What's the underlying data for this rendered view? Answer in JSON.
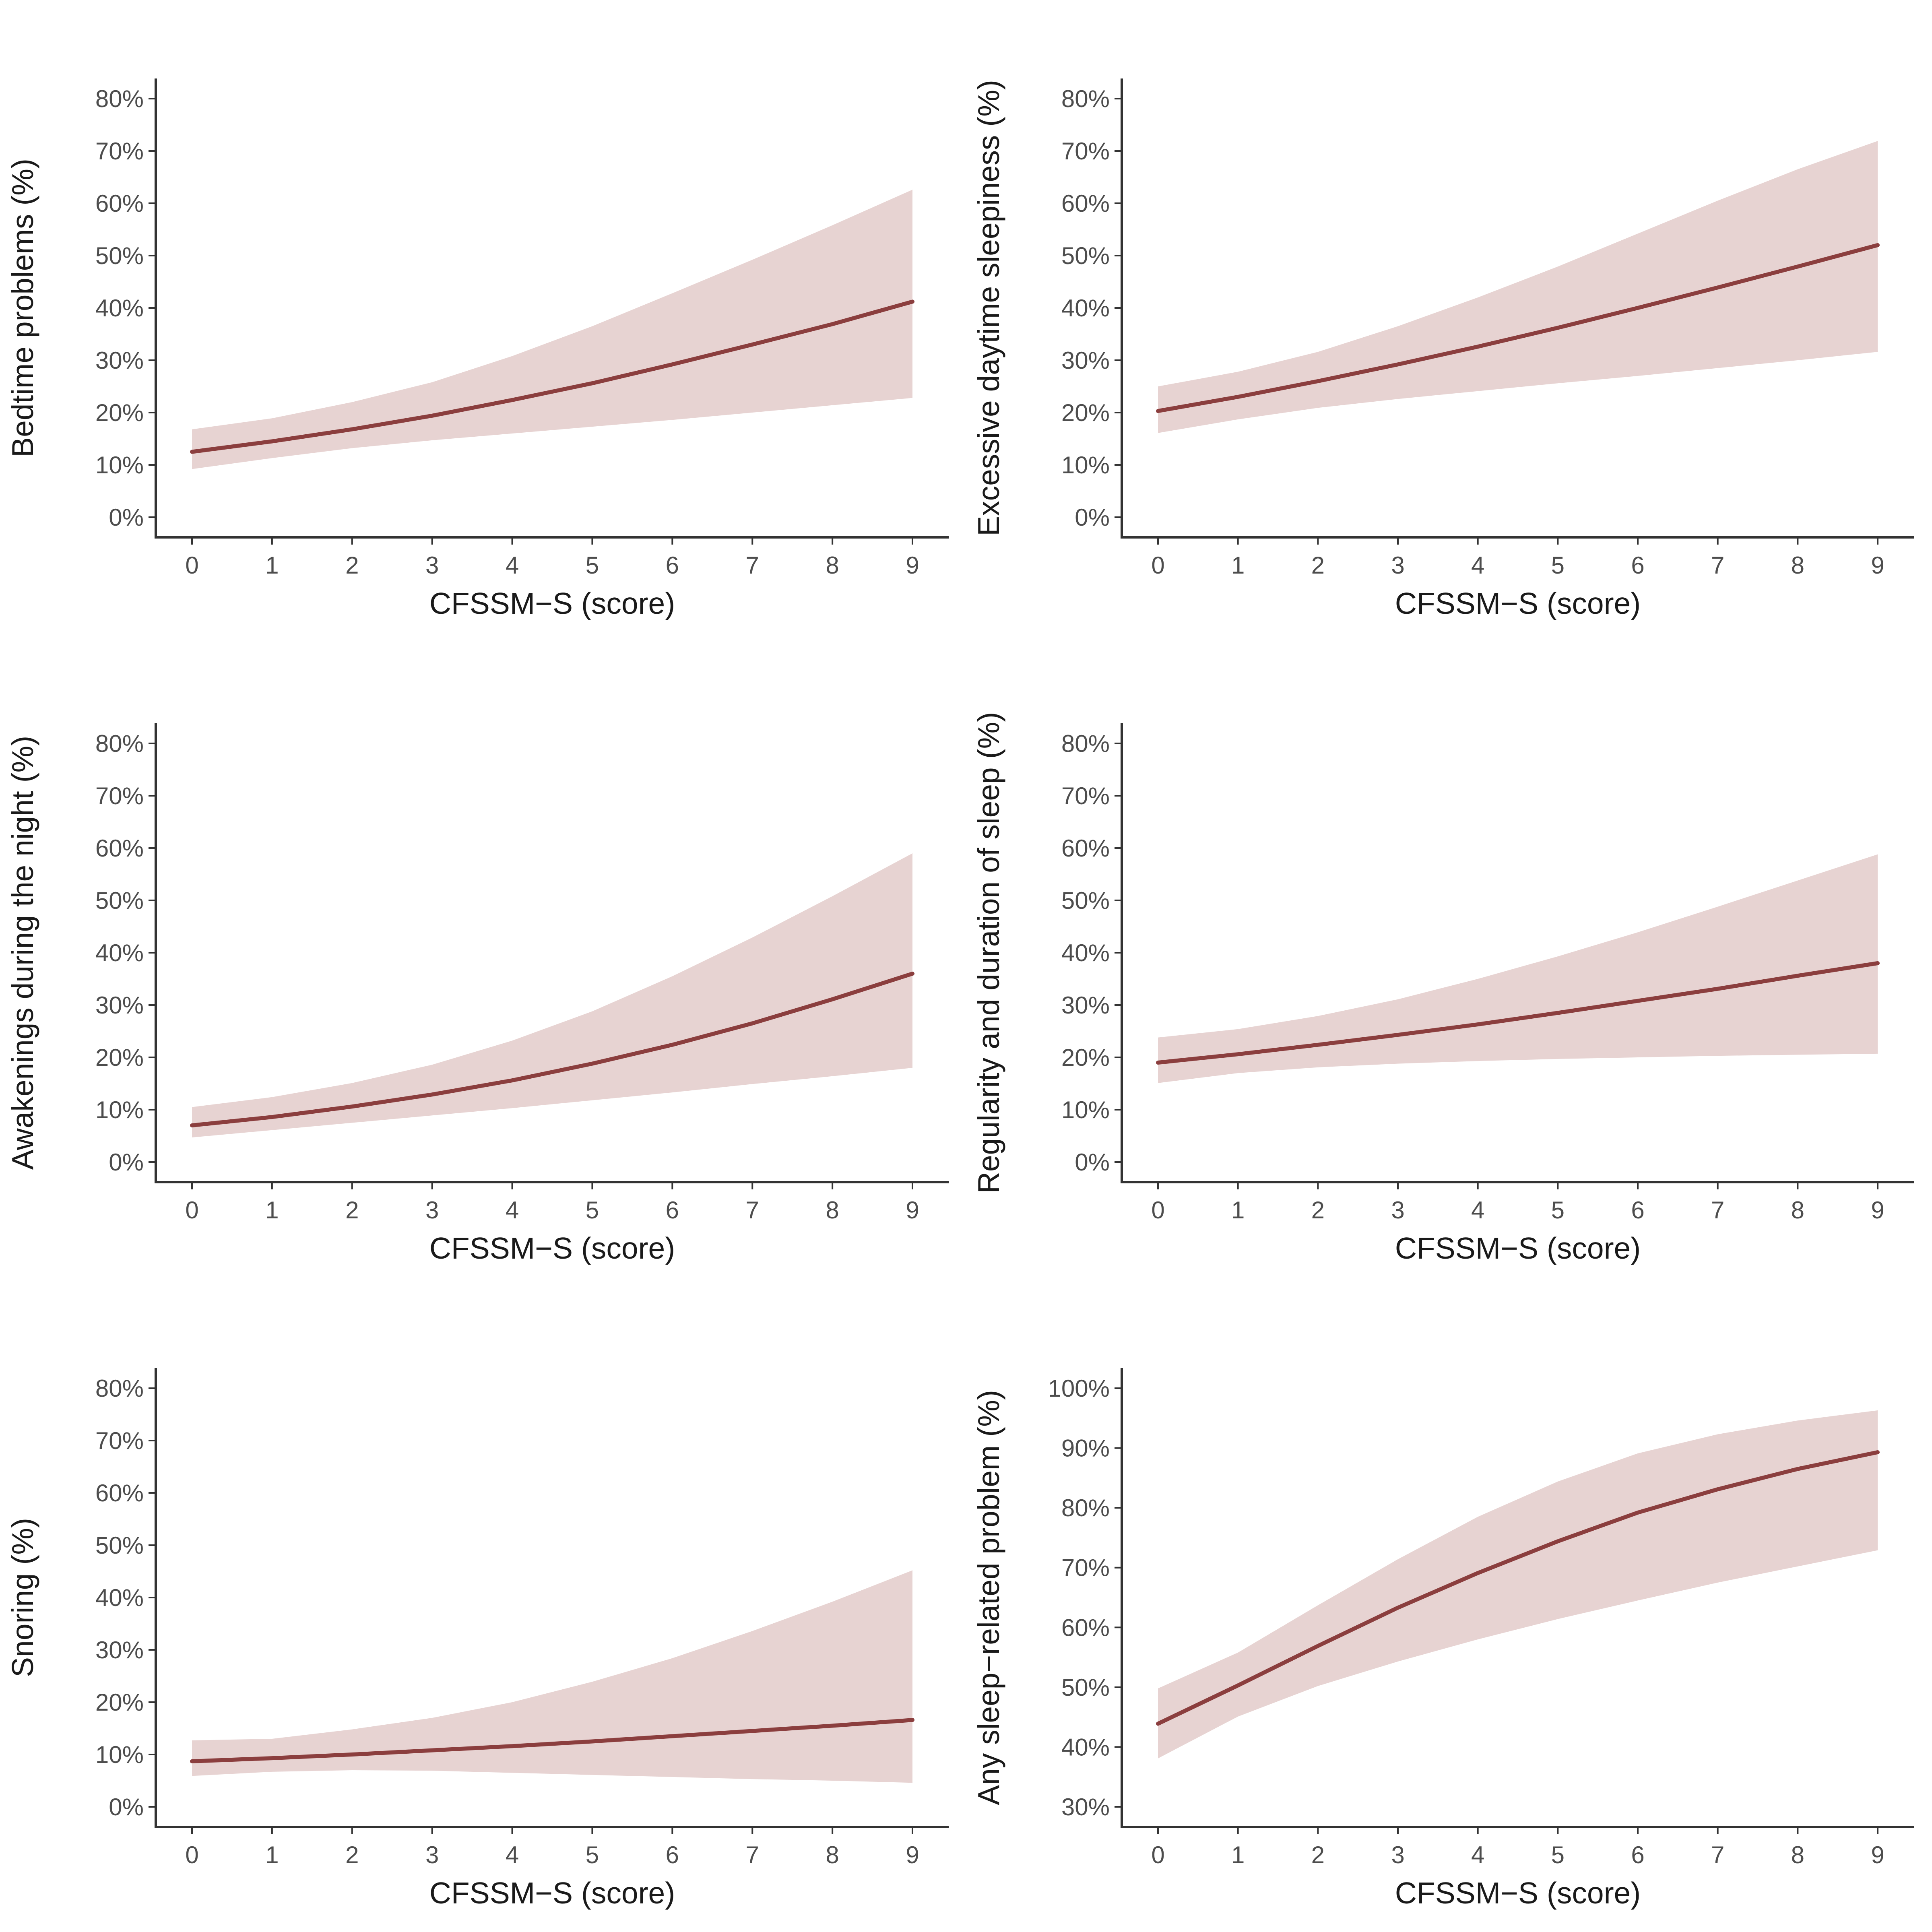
{
  "colors": {
    "line": "#8b3e3e",
    "band": "#e7d3d2",
    "axis": "#333333",
    "tick_text": "#4d4d4d"
  },
  "chart_data": [
    {
      "type": "line",
      "ylabel": "Bedtime problems (%)",
      "xlabel": "CFSSM−S (score)",
      "x": [
        0,
        1,
        2,
        3,
        4,
        5,
        6,
        7,
        8,
        9
      ],
      "xticks": [
        "0",
        "1",
        "2",
        "3",
        "4",
        "5",
        "6",
        "7",
        "8",
        "9"
      ],
      "ylim": [
        0,
        80
      ],
      "yticks": [
        0,
        10,
        20,
        30,
        40,
        50,
        60,
        70,
        80
      ],
      "ytick_labels": [
        "0%",
        "10%",
        "20%",
        "30%",
        "40%",
        "50%",
        "60%",
        "70%",
        "80%"
      ],
      "series": [
        {
          "name": "estimate",
          "values": [
            12.5,
            14.5,
            16.8,
            19.4,
            22.4,
            25.6,
            29.2,
            33.0,
            36.9,
            41.2
          ]
        },
        {
          "name": "lower",
          "values": [
            9.2,
            11.3,
            13.2,
            14.7,
            16.0,
            17.3,
            18.6,
            20.0,
            21.4,
            22.8
          ]
        },
        {
          "name": "upper",
          "values": [
            16.8,
            18.9,
            22.0,
            25.8,
            30.8,
            36.5,
            42.8,
            49.2,
            55.8,
            62.6
          ]
        }
      ]
    },
    {
      "type": "line",
      "ylabel": "Excessive daytime sleepiness (%)",
      "xlabel": "CFSSM−S (score)",
      "x": [
        0,
        1,
        2,
        3,
        4,
        5,
        6,
        7,
        8,
        9
      ],
      "xticks": [
        "0",
        "1",
        "2",
        "3",
        "4",
        "5",
        "6",
        "7",
        "8",
        "9"
      ],
      "ylim": [
        0,
        80
      ],
      "yticks": [
        0,
        10,
        20,
        30,
        40,
        50,
        60,
        70,
        80
      ],
      "ytick_labels": [
        "0%",
        "10%",
        "20%",
        "30%",
        "40%",
        "50%",
        "60%",
        "70%",
        "80%"
      ],
      "series": [
        {
          "name": "estimate",
          "values": [
            20.3,
            23.0,
            26.0,
            29.2,
            32.6,
            36.2,
            40.0,
            43.9,
            47.9,
            52.0
          ]
        },
        {
          "name": "lower",
          "values": [
            16.1,
            18.7,
            20.9,
            22.6,
            24.1,
            25.6,
            27.0,
            28.5,
            30.0,
            31.6
          ]
        },
        {
          "name": "upper",
          "values": [
            25.0,
            27.8,
            31.6,
            36.5,
            42.0,
            47.9,
            54.2,
            60.5,
            66.5,
            71.9
          ]
        }
      ]
    },
    {
      "type": "line",
      "ylabel": "Awakenings during the night (%)",
      "xlabel": "CFSSM−S (score)",
      "x": [
        0,
        1,
        2,
        3,
        4,
        5,
        6,
        7,
        8,
        9
      ],
      "xticks": [
        "0",
        "1",
        "2",
        "3",
        "4",
        "5",
        "6",
        "7",
        "8",
        "9"
      ],
      "ylim": [
        0,
        80
      ],
      "yticks": [
        0,
        10,
        20,
        30,
        40,
        50,
        60,
        70,
        80
      ],
      "ytick_labels": [
        "0%",
        "10%",
        "20%",
        "30%",
        "40%",
        "50%",
        "60%",
        "70%",
        "80%"
      ],
      "series": [
        {
          "name": "estimate",
          "values": [
            7.0,
            8.6,
            10.6,
            12.9,
            15.6,
            18.8,
            22.4,
            26.5,
            31.1,
            36.0
          ]
        },
        {
          "name": "lower",
          "values": [
            4.7,
            6.1,
            7.5,
            8.9,
            10.3,
            11.8,
            13.3,
            14.9,
            16.4,
            18.0
          ]
        },
        {
          "name": "upper",
          "values": [
            10.5,
            12.4,
            15.1,
            18.6,
            23.2,
            28.8,
            35.5,
            42.9,
            50.8,
            59.0
          ]
        }
      ]
    },
    {
      "type": "line",
      "ylabel": "Regularity and duration of sleep (%)",
      "xlabel": "CFSSM−S (score)",
      "x": [
        0,
        1,
        2,
        3,
        4,
        5,
        6,
        7,
        8,
        9
      ],
      "xticks": [
        "0",
        "1",
        "2",
        "3",
        "4",
        "5",
        "6",
        "7",
        "8",
        "9"
      ],
      "ylim": [
        0,
        80
      ],
      "yticks": [
        0,
        10,
        20,
        30,
        40,
        50,
        60,
        70,
        80
      ],
      "ytick_labels": [
        "0%",
        "10%",
        "20%",
        "30%",
        "40%",
        "50%",
        "60%",
        "70%",
        "80%"
      ],
      "series": [
        {
          "name": "estimate",
          "values": [
            19.0,
            20.6,
            22.4,
            24.3,
            26.3,
            28.5,
            30.8,
            33.1,
            35.6,
            38.0
          ]
        },
        {
          "name": "lower",
          "values": [
            15.1,
            17.0,
            18.1,
            18.8,
            19.3,
            19.7,
            20.0,
            20.3,
            20.5,
            20.7
          ]
        },
        {
          "name": "upper",
          "values": [
            23.8,
            25.4,
            27.9,
            31.1,
            35.0,
            39.3,
            43.9,
            48.8,
            53.8,
            58.8
          ]
        }
      ]
    },
    {
      "type": "line",
      "ylabel": "Snoring (%)",
      "xlabel": "CFSSM−S (score)",
      "x": [
        0,
        1,
        2,
        3,
        4,
        5,
        6,
        7,
        8,
        9
      ],
      "xticks": [
        "0",
        "1",
        "2",
        "3",
        "4",
        "5",
        "6",
        "7",
        "8",
        "9"
      ],
      "ylim": [
        0,
        80
      ],
      "yticks": [
        0,
        10,
        20,
        30,
        40,
        50,
        60,
        70,
        80
      ],
      "ytick_labels": [
        "0%",
        "10%",
        "20%",
        "30%",
        "40%",
        "50%",
        "60%",
        "70%",
        "80%"
      ],
      "series": [
        {
          "name": "estimate",
          "values": [
            8.7,
            9.3,
            10.0,
            10.8,
            11.6,
            12.5,
            13.5,
            14.5,
            15.5,
            16.6
          ]
        },
        {
          "name": "lower",
          "values": [
            5.9,
            6.7,
            7.0,
            6.9,
            6.5,
            6.1,
            5.7,
            5.3,
            5.0,
            4.6
          ]
        },
        {
          "name": "upper",
          "values": [
            12.7,
            13.0,
            14.8,
            17.0,
            20.0,
            23.9,
            28.4,
            33.6,
            39.2,
            45.2
          ]
        }
      ]
    },
    {
      "type": "line",
      "ylabel": "Any sleep−related problem (%)",
      "xlabel": "CFSSM−S (score)",
      "x": [
        0,
        1,
        2,
        3,
        4,
        5,
        6,
        7,
        8,
        9
      ],
      "xticks": [
        "0",
        "1",
        "2",
        "3",
        "4",
        "5",
        "6",
        "7",
        "8",
        "9"
      ],
      "ylim": [
        30,
        100
      ],
      "yticks": [
        30,
        40,
        50,
        60,
        70,
        80,
        90,
        100
      ],
      "ytick_labels": [
        "30%",
        "40%",
        "50%",
        "60%",
        "70%",
        "80%",
        "90%",
        "100%"
      ],
      "series": [
        {
          "name": "estimate",
          "values": [
            43.9,
            50.3,
            56.9,
            63.3,
            69.1,
            74.4,
            79.2,
            83.1,
            86.5,
            89.3
          ]
        },
        {
          "name": "lower",
          "values": [
            38.1,
            45.1,
            50.2,
            54.3,
            58.0,
            61.4,
            64.5,
            67.5,
            70.2,
            72.9
          ]
        },
        {
          "name": "upper",
          "values": [
            49.8,
            55.8,
            63.7,
            71.4,
            78.5,
            84.4,
            89.1,
            92.3,
            94.6,
            96.3
          ]
        }
      ]
    }
  ]
}
